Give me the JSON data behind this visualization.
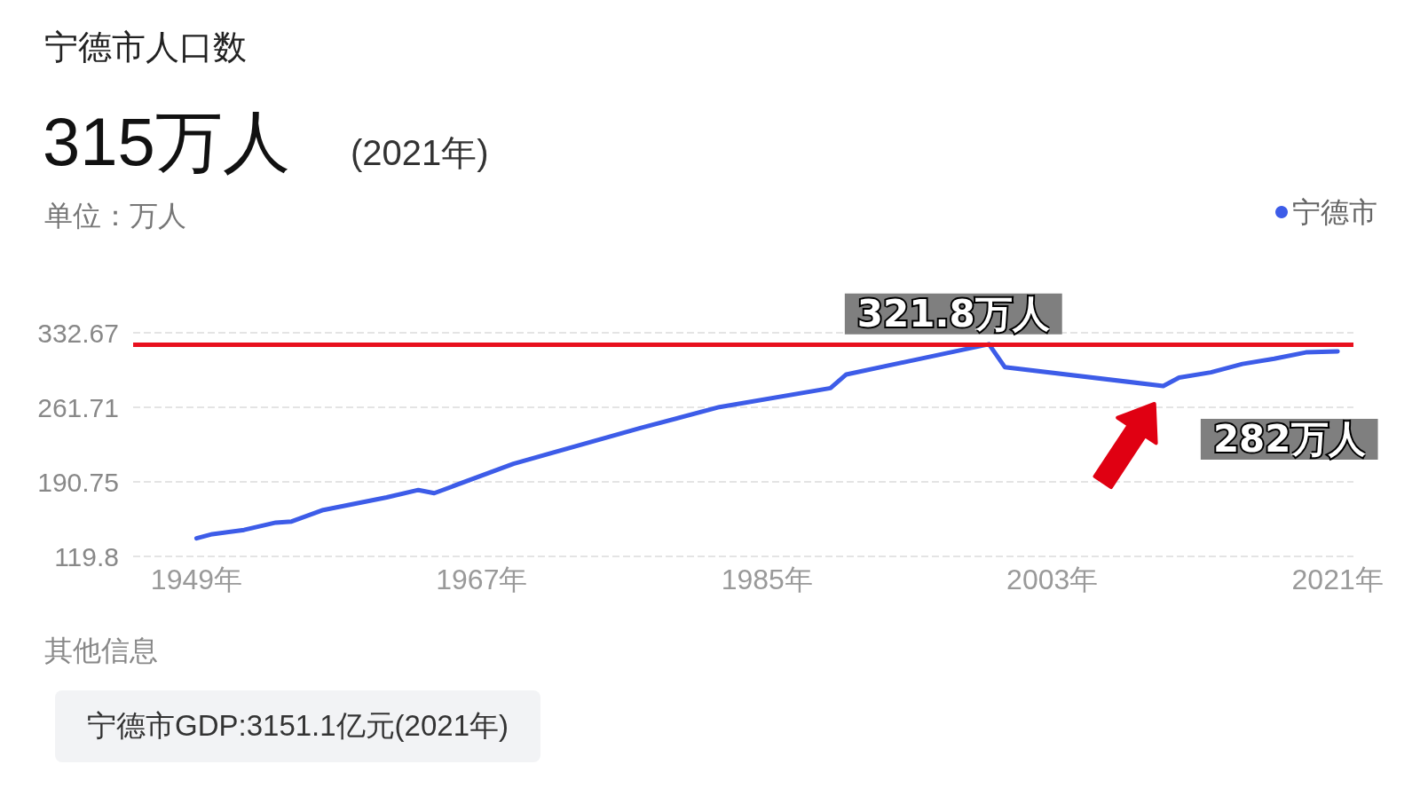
{
  "chart_data": {
    "type": "line",
    "title": "宁德市人口数",
    "subtitle": "315万人",
    "ylabel": "单位：万人",
    "annotations": [
      "(2021年)",
      "其他信息",
      "宁德市GDP:3151.1亿元(2021年)",
      {
        "text": "321.8万人",
        "x": 1999,
        "y": 321.8
      },
      {
        "text": "282万人",
        "x": 2010,
        "y": 282
      }
    ],
    "series": [
      {
        "name": "宁德市",
        "color": "#3d5ce8",
        "x": [
          1949,
          1950,
          1952,
          1954,
          1955,
          1957,
          1961,
          1963,
          1964,
          1969,
          1977,
          1982,
          1989,
          1990,
          1999,
          2000,
          2010,
          2011,
          2013,
          2015,
          2017,
          2019,
          2021
        ],
        "values": [
          137,
          141,
          145,
          152,
          153,
          164,
          176,
          183,
          180,
          208,
          242,
          262,
          280,
          293,
          321.8,
          300,
          282,
          290,
          295,
          303,
          308,
          314,
          315
        ]
      }
    ],
    "xlim": [
      1945,
      2022
    ],
    "xticks": [
      {
        "value": 1949,
        "label": "1949年"
      },
      {
        "value": 1967,
        "label": "1967年"
      },
      {
        "value": 1985,
        "label": "1985年"
      },
      {
        "value": 2003,
        "label": "2003年"
      },
      {
        "value": 2021,
        "label": "2021年"
      }
    ],
    "ylim": [
      119.8,
      332.67
    ],
    "yticks": [
      119.8,
      190.75,
      261.71,
      332.67
    ],
    "ref_lines": [
      {
        "axis": "y",
        "value": 321.8,
        "color": "#e8101e"
      }
    ],
    "grid": "y",
    "legend": "top right",
    "marker": "none",
    "line_style": "solid"
  }
}
